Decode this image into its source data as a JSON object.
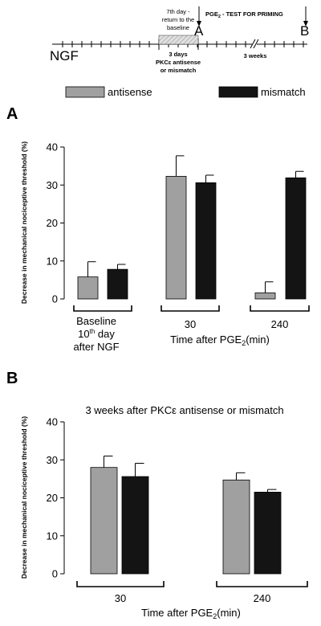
{
  "timeline": {
    "start_label": "NGF",
    "return_note": [
      "7th day -",
      "return to the",
      "baseline"
    ],
    "treatment_note": [
      "3 days",
      "PKCε antisense",
      "or mismatch"
    ],
    "test_label": "PGE",
    "test_sub": "2",
    "test_rest": " - TEST FOR PRIMING",
    "interval_label": "3 weeks",
    "point_a": "A",
    "point_b": "B"
  },
  "legend": {
    "antisense": "antisense",
    "mismatch": "mismatch"
  },
  "colors": {
    "antisense": "#a0a0a0",
    "mismatch": "#141414",
    "hatch_fill": "#d8d8d8"
  },
  "y_axis_label": "Decrease in mechanical nociceptive  threshold (%)",
  "panelA": {
    "letter": "A",
    "x_title_main": "Time after PGE",
    "x_title_sub": "2",
    "x_title_unit": "(min)",
    "baseline_lines": [
      "Baseline",
      "10",
      "th",
      " day",
      "after NGF"
    ]
  },
  "panelB": {
    "letter": "B",
    "subtitle": "3 weeks after PKCε antisense or mismatch",
    "x_title_main": "Time after PGE",
    "x_title_sub": "2",
    "x_title_unit": "(min)"
  },
  "chart_data": [
    {
      "type": "bar",
      "panel": "A",
      "categories": [
        "Baseline 10th day after NGF",
        "30",
        "240"
      ],
      "series": [
        {
          "name": "antisense",
          "values": [
            5.8,
            32.3,
            1.6
          ],
          "errors": [
            4.0,
            5.4,
            2.9
          ]
        },
        {
          "name": "mismatch",
          "values": [
            7.8,
            30.6,
            31.9
          ],
          "errors": [
            1.3,
            2.0,
            1.7
          ]
        }
      ],
      "ylim": [
        0,
        40
      ],
      "yticks": [
        0,
        10,
        20,
        30,
        40
      ],
      "xlabel": "Time after PGE2 (min)",
      "ylabel": "Decrease in mechanical nociceptive  threshold (%)"
    },
    {
      "type": "bar",
      "panel": "B",
      "title": "3 weeks after PKCε antisense or mismatch",
      "categories": [
        "30",
        "240"
      ],
      "series": [
        {
          "name": "antisense",
          "values": [
            28.0,
            24.7
          ],
          "errors": [
            3.0,
            1.9
          ]
        },
        {
          "name": "mismatch",
          "values": [
            25.6,
            21.5
          ],
          "errors": [
            3.5,
            0.7
          ]
        }
      ],
      "ylim": [
        0,
        40
      ],
      "yticks": [
        0,
        10,
        20,
        30,
        40
      ],
      "xlabel": "Time after PGE2 (min)",
      "ylabel": "Decrease in mechanical nociceptive  threshold (%)"
    }
  ]
}
